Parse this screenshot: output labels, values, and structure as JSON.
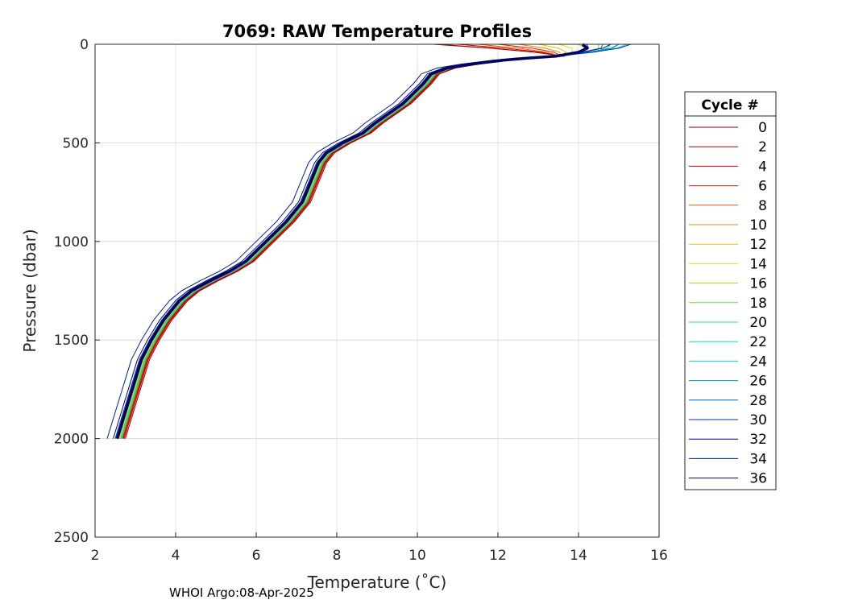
{
  "chart_data": {
    "type": "line",
    "title": "7069: RAW Temperature Profiles",
    "xlabel": "Temperature (˚C)",
    "ylabel": "Pressure (dbar)",
    "xlim": [
      2,
      16
    ],
    "ylim": [
      0,
      2500
    ],
    "y_reversed": true,
    "grid": true,
    "x_ticks": [
      2,
      4,
      6,
      8,
      10,
      12,
      14,
      16
    ],
    "y_ticks": [
      0,
      500,
      1000,
      1500,
      2000,
      2500
    ],
    "legend": {
      "title": "Cycle #",
      "location": "outside-right",
      "entries": [
        "0",
        "2",
        "4",
        "6",
        "8",
        "10",
        "12",
        "14",
        "16",
        "18",
        "20",
        "22",
        "24",
        "26",
        "28",
        "30",
        "32",
        "34",
        "36"
      ],
      "colors": [
        "#800000",
        "#b40000",
        "#d00000",
        "#e02000",
        "#e06000",
        "#e09000",
        "#e8c000",
        "#e8e000",
        "#a8e000",
        "#60e040",
        "#20e080",
        "#10e0b0",
        "#10c8e0",
        "#0090d0",
        "#0060d0",
        "#0030b0",
        "#000080",
        "#0020a0",
        "#000060"
      ]
    },
    "profile_shape": {
      "pressure": [
        2000,
        1900,
        1800,
        1700,
        1600,
        1500,
        1400,
        1300,
        1250,
        1200,
        1150,
        1100,
        1000,
        900,
        800,
        700,
        600,
        550,
        500,
        450,
        400,
        300,
        200,
        150,
        120,
        100,
        80,
        70,
        60,
        40,
        20,
        0
      ],
      "temperature": [
        2.6,
        2.75,
        2.9,
        3.05,
        3.2,
        3.45,
        3.75,
        4.15,
        4.45,
        4.9,
        5.4,
        5.8,
        6.3,
        6.8,
        7.2,
        7.4,
        7.6,
        7.8,
        8.2,
        8.7,
        9.0,
        9.7,
        10.2,
        10.4,
        10.8,
        11.4,
        12.2,
        12.8,
        13.5,
        14.0,
        14.5,
        15.0
      ]
    },
    "temperature_offsets_C": [
      0.15,
      0.12,
      0.1,
      0.08,
      0.06,
      0.05,
      0.04,
      0.02,
      0.0,
      -0.02,
      0.03,
      0.05,
      -0.05,
      -0.08,
      -0.03,
      -0.1,
      -0.15,
      -0.3,
      -0.05
    ],
    "surface_temperature_C": [
      10.4,
      10.5,
      11.0,
      12.0,
      11.5,
      12.5,
      13.0,
      13.5,
      14.0,
      14.5,
      14.8,
      15.0,
      15.2,
      15.0,
      14.6,
      15.3,
      14.2,
      14.8,
      14.1
    ],
    "highlighted_cycle": "36"
  },
  "footer": {
    "note": "WHOI Argo:08-Apr-2025"
  }
}
